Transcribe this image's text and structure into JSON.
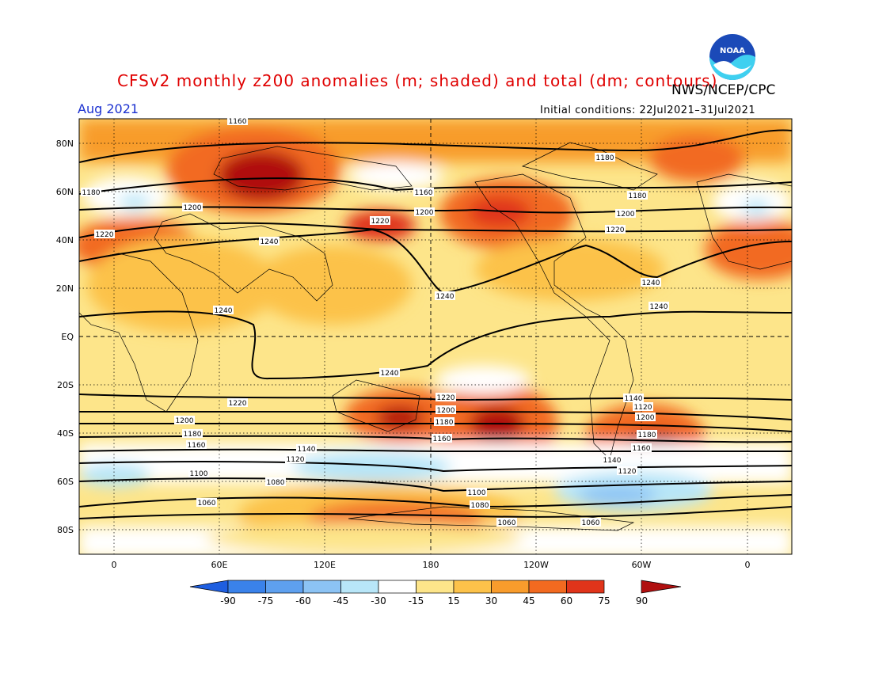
{
  "title": "CFSv2 monthly z200 anomalies (m; shaded) and total (dm; contours)",
  "agency": "NWS/NCEP/CPC",
  "period": "Aug 2021",
  "initial_conditions": "Initial conditions: 22Jul2021–31Jul2021",
  "logo_text": "NOAA",
  "lat_labels": [
    "80N",
    "60N",
    "40N",
    "20N",
    "EQ",
    "20S",
    "40S",
    "60S",
    "80S"
  ],
  "lon_labels": [
    "0",
    "60E",
    "120E",
    "180",
    "120W",
    "60W",
    "0"
  ],
  "colorbar": {
    "ticks": [
      "-90",
      "-75",
      "-60",
      "-45",
      "-30",
      "-15",
      "15",
      "30",
      "45",
      "60",
      "75",
      "90"
    ],
    "colors": [
      "#1e5ee0",
      "#3a82ea",
      "#5ea0ef",
      "#8cc3f4",
      "#b8e6f8",
      "#ffffff",
      "#fde58a",
      "#fcc24a",
      "#f89c2c",
      "#f26a20",
      "#e0341a",
      "#b01010"
    ]
  },
  "contour_labels": [
    "1160",
    "1180",
    "1200",
    "1220",
    "1240",
    "1240",
    "1240",
    "1240",
    "1220",
    "1200",
    "1180",
    "1160",
    "1140",
    "1120",
    "1100",
    "1080",
    "1060",
    "1160",
    "1180",
    "1200",
    "1220",
    "1240",
    "1180",
    "1200",
    "1220",
    "1240",
    "1200",
    "1180",
    "1160",
    "1140",
    "1120",
    "1100",
    "1080",
    "1060",
    "1220",
    "1200",
    "1180",
    "1160",
    "1140",
    "1120",
    "1060"
  ]
}
